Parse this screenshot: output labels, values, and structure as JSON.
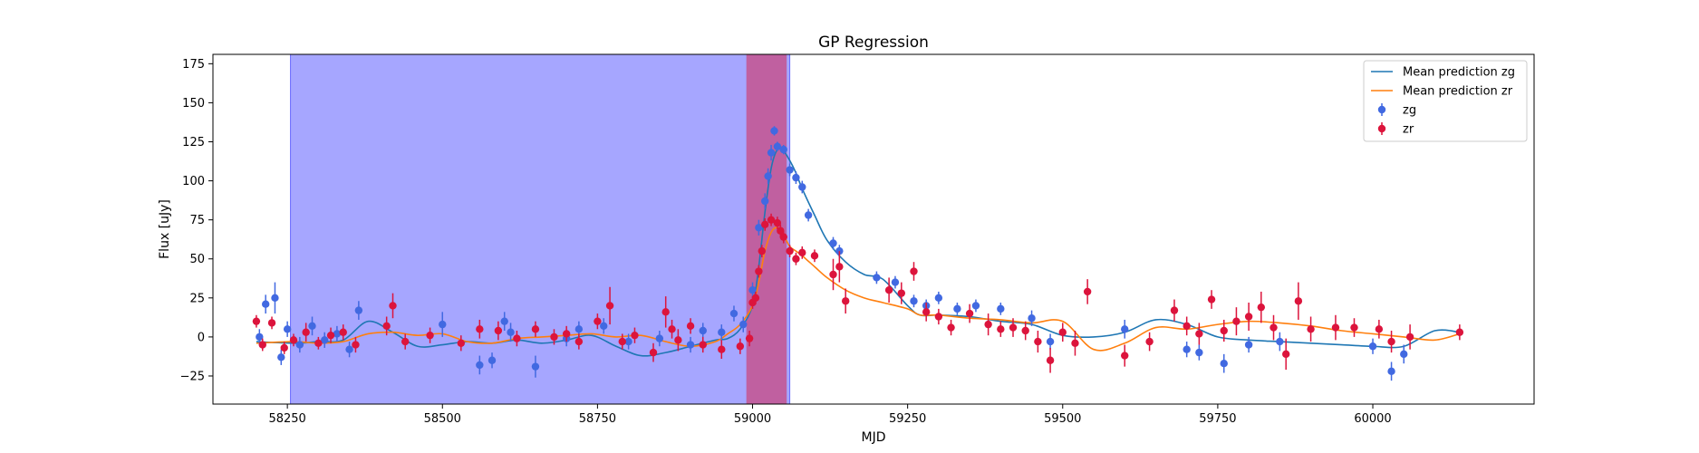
{
  "chart_data": {
    "type": "scatter",
    "title": "GP Regression",
    "xlabel": "MJD",
    "ylabel": "Flux [uJy]",
    "xlim": [
      58130,
      60260
    ],
    "ylim": [
      -43,
      181
    ],
    "xticks": [
      58250,
      58500,
      58750,
      59000,
      59250,
      59500,
      59750,
      60000
    ],
    "yticks": [
      -25,
      0,
      25,
      50,
      75,
      100,
      125,
      150,
      175
    ],
    "legend_position": "upper right",
    "shaded_regions": [
      {
        "x0": 58255,
        "x1": 59060,
        "color": "#a6a6ff"
      },
      {
        "x0": 58990,
        "x1": 59055,
        "color": "#c060a0"
      }
    ],
    "series": [
      {
        "name": "Mean prediction zg",
        "kind": "line",
        "color": "#1f77b4",
        "x": [
          58200,
          58260,
          58300,
          58340,
          58380,
          58420,
          58460,
          58500,
          58540,
          58580,
          58620,
          58660,
          58700,
          58740,
          58780,
          58820,
          58860,
          58900,
          58940,
          58960,
          58980,
          59000,
          59010,
          59020,
          59030,
          59040,
          59050,
          59060,
          59070,
          59080,
          59100,
          59120,
          59150,
          59180,
          59210,
          59250,
          59270,
          59300,
          59350,
          59400,
          59450,
          59500,
          59550,
          59600,
          59650,
          59700,
          59750,
          59800,
          59850,
          59900,
          59950,
          60000,
          60050,
          60100,
          60140
        ],
        "y": [
          -3,
          -4,
          -3,
          -2,
          10,
          3,
          -6,
          -5,
          -3,
          -4,
          -2,
          -4,
          -2,
          1,
          -6,
          -12,
          -10,
          -6,
          -2,
          -1,
          5,
          20,
          45,
          80,
          108,
          120,
          119,
          113,
          105,
          95,
          78,
          62,
          48,
          40,
          37,
          20,
          14,
          14,
          13,
          10,
          8,
          1,
          0,
          3,
          11,
          8,
          0,
          -2,
          -3,
          -4,
          -5,
          -6,
          -6,
          4,
          3
        ]
      },
      {
        "name": "Mean prediction zr",
        "kind": "line",
        "color": "#ff7f0e",
        "x": [
          58200,
          58260,
          58300,
          58340,
          58380,
          58420,
          58460,
          58500,
          58540,
          58580,
          58620,
          58660,
          58700,
          58740,
          58780,
          58820,
          58860,
          58900,
          58940,
          58960,
          58980,
          59000,
          59010,
          59020,
          59030,
          59040,
          59050,
          59060,
          59070,
          59080,
          59100,
          59120,
          59150,
          59180,
          59210,
          59250,
          59270,
          59300,
          59350,
          59400,
          59450,
          59500,
          59550,
          59600,
          59650,
          59700,
          59750,
          59800,
          59850,
          59900,
          59950,
          60000,
          60050,
          60100,
          60140
        ],
        "y": [
          -4,
          -3,
          -4,
          -3,
          2,
          3,
          1,
          2,
          -3,
          -4,
          -1,
          0,
          1,
          2,
          0,
          1,
          -3,
          -6,
          -3,
          2,
          8,
          20,
          35,
          55,
          67,
          70,
          65,
          58,
          55,
          52,
          45,
          38,
          30,
          25,
          22,
          18,
          14,
          14,
          12,
          11,
          9,
          10,
          -8,
          -4,
          6,
          5,
          8,
          10,
          9,
          7,
          4,
          2,
          0,
          -2,
          2
        ]
      },
      {
        "name": "zg",
        "kind": "errorbar",
        "color": "#4169e1",
        "x": [
          58205,
          58215,
          58230,
          58240,
          58250,
          58270,
          58290,
          58310,
          58330,
          58350,
          58365,
          58500,
          58560,
          58580,
          58600,
          58610,
          58650,
          58700,
          58720,
          58760,
          58800,
          58850,
          58900,
          58920,
          58950,
          58970,
          58985,
          59000,
          59010,
          59020,
          59025,
          59030,
          59035,
          59040,
          59050,
          59060,
          59070,
          59080,
          59090,
          59130,
          59140,
          59200,
          59230,
          59260,
          59280,
          59300,
          59330,
          59360,
          59400,
          59450,
          59480,
          59600,
          59700,
          59720,
          59760,
          59800,
          59850,
          60000,
          60030,
          60050
        ],
        "y": [
          0,
          21,
          25,
          -13,
          5,
          -5,
          7,
          -2,
          2,
          -8,
          17,
          8,
          -18,
          -15,
          10,
          3,
          -19,
          -1,
          5,
          7,
          -3,
          -1,
          -5,
          4,
          3,
          15,
          8,
          30,
          70,
          87,
          103,
          118,
          132,
          122,
          120,
          107,
          102,
          96,
          78,
          60,
          55,
          38,
          35,
          23,
          20,
          25,
          18,
          20,
          18,
          12,
          -3,
          5,
          -8,
          -10,
          -17,
          -5,
          -3,
          -6,
          -22,
          -11
        ],
        "err": [
          5,
          6,
          10,
          5,
          5,
          5,
          6,
          5,
          5,
          5,
          6,
          8,
          6,
          5,
          6,
          6,
          7,
          5,
          5,
          5,
          5,
          5,
          5,
          5,
          5,
          5,
          5,
          5,
          5,
          5,
          5,
          5,
          3,
          3,
          3,
          4,
          4,
          4,
          4,
          4,
          4,
          4,
          4,
          4,
          4,
          4,
          4,
          4,
          4,
          5,
          5,
          6,
          5,
          5,
          6,
          5,
          6,
          5,
          6,
          6
        ]
      },
      {
        "name": "zr",
        "kind": "errorbar",
        "color": "#dc143c",
        "x": [
          58200,
          58210,
          58225,
          58245,
          58260,
          58280,
          58300,
          58320,
          58340,
          58360,
          58410,
          58420,
          58440,
          58480,
          58530,
          58560,
          58590,
          58620,
          58650,
          58680,
          58700,
          58720,
          58750,
          58770,
          58790,
          58810,
          58840,
          58860,
          58870,
          58880,
          58900,
          58920,
          58950,
          58980,
          58995,
          59000,
          59005,
          59010,
          59015,
          59020,
          59030,
          59040,
          59045,
          59050,
          59060,
          59070,
          59080,
          59100,
          59130,
          59140,
          59150,
          59220,
          59240,
          59260,
          59280,
          59300,
          59320,
          59350,
          59380,
          59400,
          59420,
          59440,
          59460,
          59480,
          59500,
          59520,
          59540,
          59600,
          59640,
          59680,
          59700,
          59720,
          59740,
          59760,
          59780,
          59800,
          59820,
          59840,
          59860,
          59880,
          59900,
          59940,
          59970,
          60010,
          60030,
          60060,
          60140
        ],
        "y": [
          10,
          -5,
          9,
          -7,
          -2,
          3,
          -4,
          1,
          3,
          -5,
          7,
          20,
          -3,
          1,
          -4,
          5,
          4,
          -1,
          5,
          0,
          2,
          -3,
          10,
          20,
          -3,
          1,
          -10,
          16,
          5,
          -2,
          7,
          -5,
          -8,
          -6,
          -1,
          22,
          25,
          42,
          55,
          72,
          75,
          73,
          68,
          64,
          55,
          50,
          54,
          52,
          40,
          45,
          23,
          30,
          28,
          42,
          16,
          13,
          6,
          15,
          8,
          5,
          6,
          4,
          -3,
          -15,
          3,
          -4,
          29,
          -12,
          -3,
          17,
          7,
          2,
          24,
          4,
          10,
          13,
          19,
          6,
          -11,
          23,
          5,
          6,
          6,
          5,
          -3,
          0,
          3
        ],
        "err": [
          4,
          4,
          4,
          4,
          4,
          6,
          4,
          5,
          5,
          5,
          6,
          8,
          5,
          5,
          5,
          6,
          6,
          5,
          5,
          5,
          5,
          5,
          5,
          12,
          5,
          5,
          6,
          10,
          6,
          7,
          5,
          5,
          6,
          5,
          5,
          4,
          4,
          4,
          4,
          4,
          4,
          4,
          4,
          4,
          4,
          4,
          4,
          4,
          10,
          10,
          8,
          8,
          7,
          6,
          6,
          5,
          5,
          6,
          7,
          5,
          6,
          6,
          7,
          8,
          6,
          8,
          8,
          7,
          6,
          7,
          6,
          7,
          6,
          7,
          9,
          9,
          10,
          8,
          10,
          12,
          8,
          8,
          6,
          6,
          7,
          8,
          5
        ]
      }
    ]
  }
}
